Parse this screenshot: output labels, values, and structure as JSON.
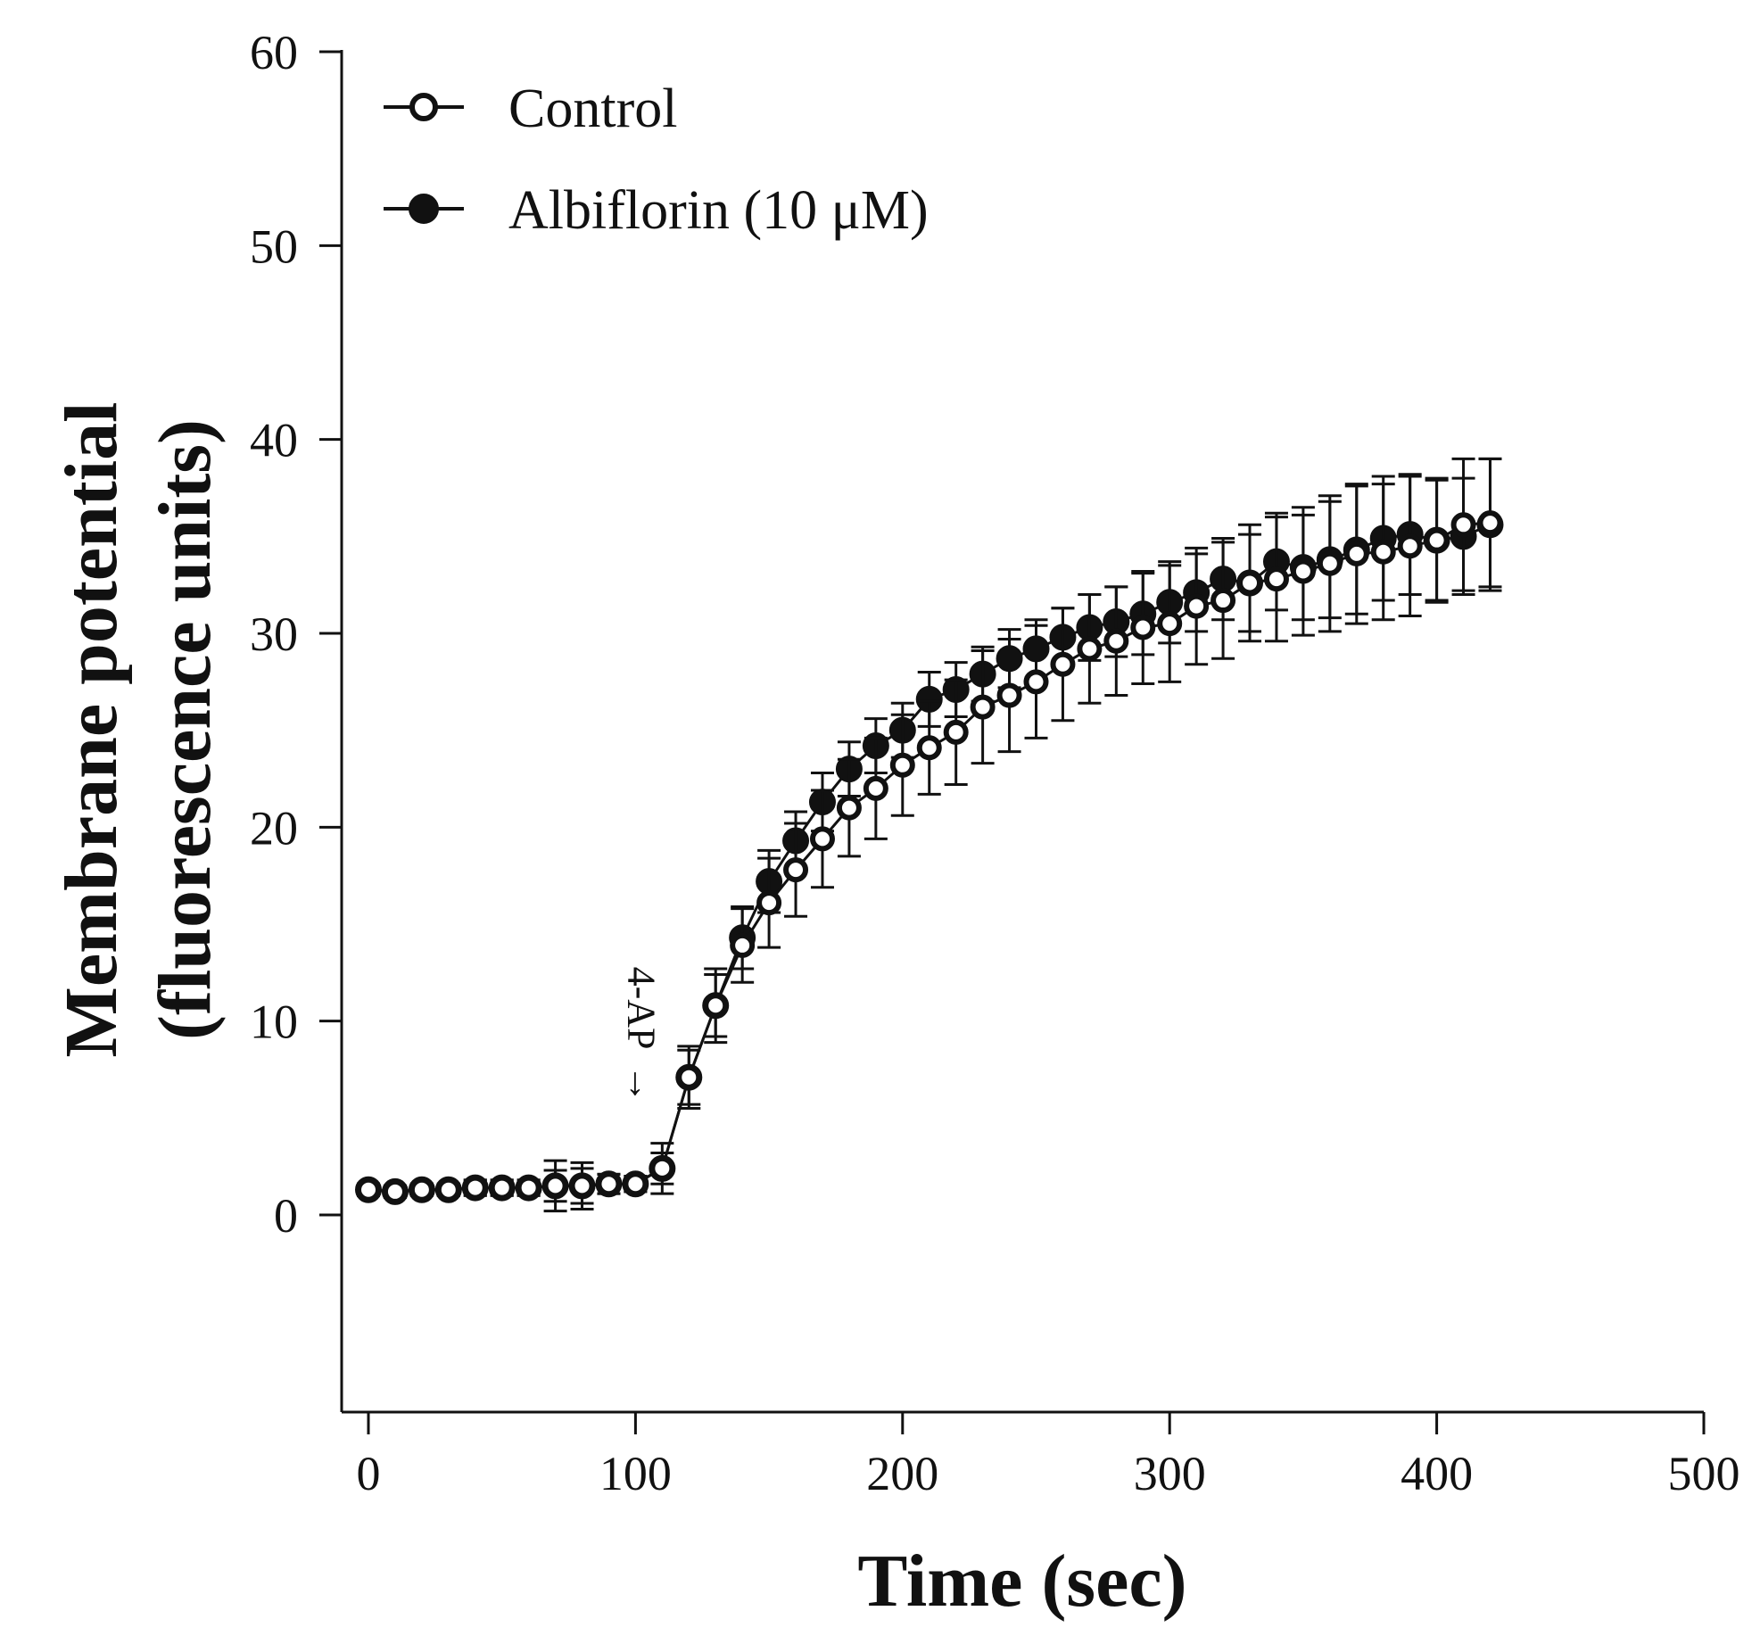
{
  "chart_data": {
    "type": "scatter",
    "title": "",
    "xlabel": "Time (sec)",
    "ylabel_line1": "Membrane potential",
    "ylabel_line2": "(fluorescence units)",
    "xlim": [
      -10,
      500
    ],
    "ylim": [
      -10,
      60
    ],
    "xticks": [
      0,
      100,
      200,
      300,
      400,
      500
    ],
    "xtick_labels": [
      "0",
      "100",
      "200",
      "300",
      "400",
      "500"
    ],
    "yticks": [
      0,
      10,
      20,
      30,
      40,
      50,
      60
    ],
    "ytick_labels": [
      "0",
      "10",
      "20",
      "30",
      "40",
      "50",
      "60"
    ],
    "legend_position": "top-left",
    "annotation": {
      "text": "4-AP",
      "arrow": "→",
      "x": 100,
      "y": 4
    },
    "series": [
      {
        "name": "Albiflorin (10 μM)",
        "marker": "filled-circle",
        "x": [
          0,
          10,
          20,
          30,
          40,
          50,
          60,
          70,
          80,
          90,
          100,
          110,
          120,
          130,
          140,
          150,
          160,
          170,
          180,
          190,
          200,
          210,
          220,
          230,
          240,
          250,
          260,
          270,
          280,
          290,
          300,
          310,
          320,
          330,
          340,
          350,
          360,
          370,
          380,
          390,
          400,
          410,
          420
        ],
        "y": [
          1.3,
          1.2,
          1.3,
          1.3,
          1.4,
          1.4,
          1.4,
          1.5,
          1.5,
          1.6,
          1.6,
          2.4,
          7.1,
          10.8,
          14.3,
          17.2,
          19.3,
          21.3,
          23.0,
          24.2,
          25.0,
          26.6,
          27.1,
          27.9,
          28.7,
          29.2,
          29.8,
          30.3,
          30.6,
          31.0,
          31.6,
          32.1,
          32.8,
          32.6,
          33.7,
          33.4,
          33.8,
          34.3,
          34.9,
          35.1,
          34.8,
          35.0,
          35.6
        ],
        "err": [
          0.3,
          0.3,
          0.3,
          0.3,
          0.4,
          0.4,
          0.4,
          0.8,
          0.9,
          0.5,
          0.4,
          0.8,
          1.4,
          1.6,
          1.6,
          1.6,
          1.5,
          1.5,
          1.4,
          1.4,
          1.4,
          1.4,
          1.4,
          1.4,
          1.5,
          1.5,
          1.5,
          1.7,
          1.8,
          2.1,
          2.1,
          2.0,
          2.1,
          2.5,
          2.5,
          2.7,
          3.0,
          3.3,
          3.2,
          3.1,
          3.1,
          3.0,
          3.4
        ]
      },
      {
        "name": "Control",
        "marker": "open-circle",
        "x": [
          0,
          10,
          20,
          30,
          40,
          50,
          60,
          70,
          80,
          90,
          100,
          110,
          120,
          130,
          140,
          150,
          160,
          170,
          180,
          190,
          200,
          210,
          220,
          230,
          240,
          250,
          260,
          270,
          280,
          290,
          300,
          310,
          320,
          330,
          340,
          350,
          360,
          370,
          380,
          390,
          400,
          410,
          420
        ],
        "y": [
          1.3,
          1.2,
          1.3,
          1.3,
          1.4,
          1.4,
          1.4,
          1.5,
          1.5,
          1.6,
          1.6,
          2.4,
          7.1,
          10.8,
          13.9,
          16.1,
          17.8,
          19.4,
          21.0,
          22.0,
          23.2,
          24.1,
          24.9,
          26.2,
          26.8,
          27.5,
          28.4,
          29.2,
          29.6,
          30.3,
          30.5,
          31.4,
          31.7,
          32.6,
          32.8,
          33.2,
          33.6,
          34.1,
          34.2,
          34.5,
          34.8,
          35.6,
          35.7
        ],
        "err": [
          0.3,
          0.3,
          0.3,
          0.3,
          0.4,
          0.4,
          0.4,
          1.3,
          1.2,
          0.5,
          0.4,
          1.3,
          1.6,
          1.9,
          1.9,
          2.3,
          2.4,
          2.5,
          2.5,
          2.6,
          2.6,
          2.4,
          2.7,
          2.9,
          2.9,
          2.9,
          2.9,
          2.8,
          2.8,
          2.9,
          3.0,
          3.0,
          3.0,
          3.0,
          3.2,
          3.3,
          3.5,
          3.6,
          3.5,
          3.6,
          3.2,
          3.4,
          3.3
        ]
      }
    ]
  }
}
